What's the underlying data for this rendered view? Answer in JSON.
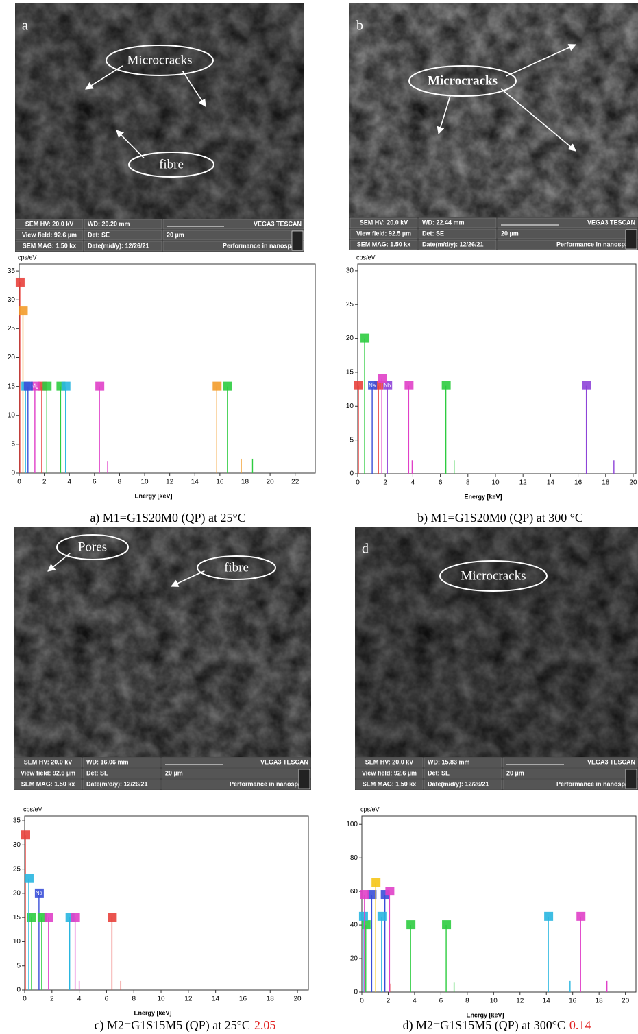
{
  "sem_panels": [
    {
      "letter": "a",
      "annotations": [
        "Microcracks",
        "fibre"
      ],
      "info": [
        "SEM HV: 20.0 kV",
        "WD: 20.20 mm",
        "VEGA3 TESCAN",
        "View field: 92.6 µm",
        "Det: SE",
        "20 µm",
        "SEM MAG: 1.50 kx",
        "Date(m/d/y): 12/26/21",
        "Performance in nanospace"
      ]
    },
    {
      "letter": "b",
      "annotations": [
        "Microcracks"
      ],
      "info": [
        "SEM HV: 20.0 kV",
        "WD: 22.44 mm",
        "VEGA3 TESCAN",
        "View field: 92.5 µm",
        "Det: SE",
        "20 µm",
        "SEM MAG: 1.50 kx",
        "Date(m/d/y): 12/26/21",
        "Performance in nanospace"
      ]
    },
    {
      "letter": null,
      "annotations": [
        "Pores",
        "fibre"
      ],
      "info": [
        "SEM HV: 20.0 kV",
        "WD: 16.06 mm",
        "VEGA3 TESCAN",
        "View field: 92.6 µm",
        "Det: SE",
        "20 µm",
        "SEM MAG: 1.50 kx",
        "Date(m/d/y): 12/26/21",
        "Performance in nanospace"
      ]
    },
    {
      "letter": "d",
      "annotations": [
        "Microcracks"
      ],
      "info": [
        "SEM HV: 20.0 kV",
        "WD: 15.83 mm",
        "VEGA3 TESCAN",
        "View field: 92.6 µm",
        "Det: SE",
        "20 µm",
        "SEM MAG: 1.50 kx",
        "Date(m/d/y): 12/26/21",
        "Performance in nanospace"
      ]
    }
  ],
  "chart_data": [
    {
      "type": "spectrum",
      "ylabel": "cps/eV",
      "xlabel": "Energy [keV]",
      "caption": "a)   M1=G1S20M0 (QP) at 25°C",
      "xlim": [
        0,
        23.6
      ],
      "ylim": [
        0,
        36.2
      ],
      "xticks": [
        0,
        2,
        4,
        6,
        8,
        10,
        12,
        14,
        16,
        18,
        20,
        22
      ],
      "yticks": [
        0,
        5,
        10,
        15,
        20,
        25,
        30,
        35
      ],
      "series": [
        {
          "name": null,
          "color": "#e8413c",
          "x": [
            0.05,
            1.8
          ],
          "values": [
            33,
            15
          ]
        },
        {
          "name": null,
          "color": "#f39c2b",
          "x": [
            0.3,
            15.75,
            17.7
          ],
          "values": [
            28,
            15,
            2.5
          ]
        },
        {
          "name": null,
          "color": "#2ecc40",
          "x": [
            2.2,
            3.3,
            16.6,
            18.6
          ],
          "values": [
            15,
            15,
            15,
            2.5
          ]
        },
        {
          "name": "Mg",
          "color": "#e040c8",
          "x": [
            1.25,
            6.4,
            7.05
          ],
          "values": [
            15,
            15,
            2
          ]
        },
        {
          "name": null,
          "color": "#29b6e0",
          "x": [
            0.5,
            3.7
          ],
          "values": [
            15,
            15
          ]
        },
        {
          "name": null,
          "color": "#3a4fd8",
          "x": [
            0.7
          ],
          "values": [
            15
          ]
        }
      ]
    },
    {
      "type": "spectrum",
      "ylabel": "cps/eV",
      "xlabel": "Energy [keV]",
      "caption": "b)   M1=G1S20M0 (QP) at 300 °C",
      "xlim": [
        0,
        20.2
      ],
      "ylim": [
        0,
        31
      ],
      "xticks": [
        0,
        2,
        4,
        6,
        8,
        10,
        12,
        14,
        16,
        18,
        20
      ],
      "yticks": [
        0,
        5,
        10,
        15,
        20,
        25,
        30
      ],
      "series": [
        {
          "name": null,
          "color": "#e8413c",
          "x": [
            0.05,
            1.5
          ],
          "values": [
            13,
            13
          ]
        },
        {
          "name": null,
          "color": "#2ecc40",
          "x": [
            0.5,
            6.4,
            7.0
          ],
          "values": [
            20,
            13,
            2
          ]
        },
        {
          "name": "Na",
          "color": "#3a4fd8",
          "x": [
            1.05
          ],
          "values": [
            13
          ]
        },
        {
          "name": "Nb",
          "color": "#8e44d8",
          "x": [
            2.15,
            16.6,
            18.6
          ],
          "values": [
            13,
            13,
            2
          ]
        },
        {
          "name": null,
          "color": "#e040c8",
          "x": [
            1.75,
            3.7,
            3.95
          ],
          "values": [
            14,
            13,
            2
          ]
        }
      ]
    },
    {
      "type": "spectrum",
      "ylabel": "cps/eV",
      "xlabel": "Energy [keV]",
      "caption": "c)   M2=G1S15M5 (QP) at 25°C",
      "note": "2.05",
      "xlim": [
        0,
        20.8
      ],
      "ylim": [
        0,
        36
      ],
      "xticks": [
        0,
        2,
        4,
        6,
        8,
        10,
        12,
        14,
        16,
        18,
        20
      ],
      "yticks": [
        0,
        5,
        10,
        15,
        20,
        25,
        30,
        35
      ],
      "series": [
        {
          "name": null,
          "color": "#e8413c",
          "x": [
            0.05,
            6.4,
            7.05
          ],
          "values": [
            32,
            15,
            2
          ]
        },
        {
          "name": "Na",
          "color": "#3a4fd8",
          "x": [
            1.05
          ],
          "values": [
            20
          ]
        },
        {
          "name": null,
          "color": "#2ecc40",
          "x": [
            0.5,
            1.25
          ],
          "values": [
            15,
            15
          ]
        },
        {
          "name": null,
          "color": "#29b6e0",
          "x": [
            0.3,
            3.3
          ],
          "values": [
            23,
            15
          ]
        },
        {
          "name": null,
          "color": "#e040c8",
          "x": [
            1.75,
            3.7,
            4.0
          ],
          "values": [
            15,
            15,
            2
          ]
        }
      ]
    },
    {
      "type": "spectrum",
      "ylabel": "cps/eV",
      "xlabel": "Energy [keV]",
      "caption": "d)   M2=G1S15M5 (QP) at 300°C",
      "note": "0.14",
      "xlim": [
        0,
        20.8
      ],
      "ylim": [
        0,
        105
      ],
      "xticks": [
        0,
        2,
        4,
        6,
        8,
        10,
        12,
        14,
        16,
        18,
        20
      ],
      "yticks": [
        0,
        20,
        40,
        60,
        80,
        100
      ],
      "series": [
        {
          "name": null,
          "color": "#2ecc40",
          "x": [
            0.3,
            3.7,
            6.4,
            7.0
          ],
          "values": [
            40,
            40,
            40,
            6
          ]
        },
        {
          "name": null,
          "color": "#3a4fd8",
          "x": [
            0.75,
            1.75
          ],
          "values": [
            58,
            58
          ]
        },
        {
          "name": null,
          "color": "#29b6e0",
          "x": [
            0.1,
            1.5,
            14.15,
            15.8
          ],
          "values": [
            45,
            45,
            45,
            7
          ]
        },
        {
          "name": null,
          "color": "#e040c8",
          "x": [
            0.2,
            2.1,
            16.6,
            18.6
          ],
          "values": [
            58,
            60,
            45,
            7
          ]
        },
        {
          "name": null,
          "color": "#f5c518",
          "x": [
            1.05
          ],
          "values": [
            65
          ]
        },
        {
          "name": null,
          "color": "#e8413c",
          "x": [
            2.2
          ],
          "values": [
            5
          ]
        }
      ]
    }
  ]
}
